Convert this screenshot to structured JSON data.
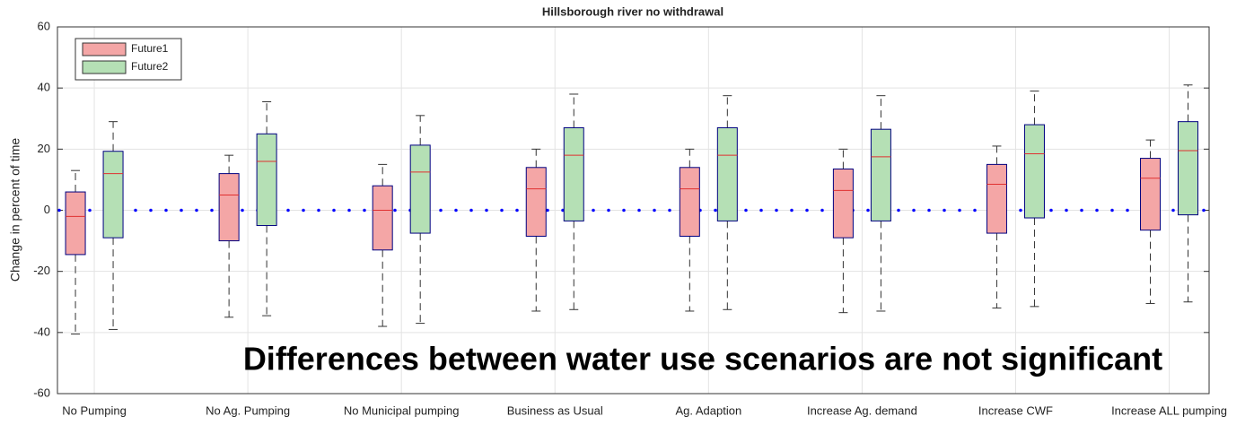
{
  "chart_data": {
    "type": "box",
    "title": "Hillsborough river no withdrawal",
    "y_label": "Change in percent of time",
    "annotation": "Differences between water use scenarios are not significant",
    "categories": [
      "No Pumping",
      "No Ag. Pumping",
      "No Municipal pumping",
      "Business as Usual",
      "Ag. Adaption",
      "Increase Ag. demand",
      "Increase CWF",
      "Increase ALL pumping"
    ],
    "series": [
      {
        "name": "Future1",
        "color": "#f4a6a6",
        "max": [
          13,
          18,
          15,
          20,
          20,
          20,
          21,
          23
        ],
        "q3": [
          6,
          12,
          8,
          14,
          14,
          13.5,
          15,
          17
        ],
        "median": [
          -2,
          5,
          0,
          7,
          7,
          6.5,
          8.5,
          10.5
        ],
        "q1": [
          -14.5,
          -10,
          -13,
          -8.5,
          -8.5,
          -9,
          -7.5,
          -6.5
        ],
        "min": [
          -40.5,
          -35,
          -38,
          -33,
          -33,
          -33.5,
          -32,
          -30.5
        ]
      },
      {
        "name": "Future2",
        "color": "#b5e0b5",
        "max": [
          29,
          35.5,
          31,
          38,
          37.5,
          37.5,
          39,
          41
        ],
        "q3": [
          19.3,
          25,
          21.3,
          27,
          27,
          26.5,
          28,
          29
        ],
        "median": [
          12,
          16,
          12.5,
          18,
          18,
          17.5,
          18.5,
          19.5
        ],
        "q1": [
          -9,
          -5,
          -7.5,
          -3.5,
          -3.5,
          -3.5,
          -2.5,
          -1.5
        ],
        "min": [
          -39,
          -34.5,
          -37,
          -32.5,
          -32.5,
          -33,
          -31.5,
          -30
        ]
      }
    ],
    "reference_line": {
      "value": 0,
      "color": "#0000ff"
    },
    "box_edge_color": "#000080",
    "median_color": "#e03030",
    "ylim": [
      -60,
      60
    ],
    "yticks": [
      -60,
      -40,
      -20,
      0,
      20,
      40,
      60
    ],
    "grid": true,
    "legend": "upper-left"
  }
}
